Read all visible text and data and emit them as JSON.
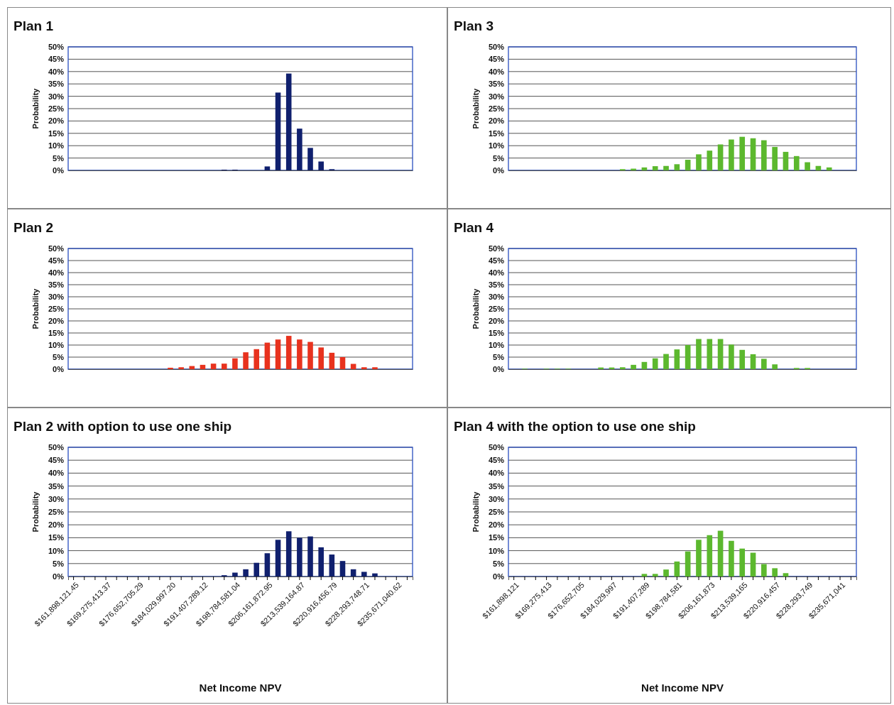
{
  "chart_data": [
    {
      "type": "bar",
      "title": "Plan  1",
      "ylabel": "Probability",
      "tick_labels": "y",
      "grid": "y",
      "categories": [
        null,
        null,
        null,
        null,
        null,
        null,
        null,
        null,
        null,
        null,
        null,
        null,
        null,
        null,
        null,
        null,
        null,
        null,
        null,
        null,
        null,
        null,
        null,
        null,
        null,
        null,
        null,
        null,
        null,
        null,
        null,
        null
      ],
      "values": [
        null,
        null,
        null,
        null,
        null,
        null,
        null,
        null,
        null,
        null,
        null,
        null,
        null,
        null,
        0.3,
        0.3,
        null,
        null,
        1.6,
        31.5,
        39.2,
        16.9,
        9.1,
        3.6,
        0.5,
        null,
        null,
        null,
        null,
        null,
        null,
        null
      ],
      "color": "#10206e",
      "ylim": [
        0,
        50
      ],
      "yticks": [
        {
          "value": 0,
          "label": "0%"
        },
        {
          "value": 5,
          "label": "5%"
        },
        {
          "value": 10,
          "label": "10%"
        },
        {
          "value": 15,
          "label": "15%"
        },
        {
          "value": 20,
          "label": "20%"
        },
        {
          "value": 25,
          "label": "25%"
        },
        {
          "value": 30,
          "label": "30%"
        },
        {
          "value": 35,
          "label": "35%"
        },
        {
          "value": 40,
          "label": "40%"
        },
        {
          "value": 45,
          "label": "45%"
        },
        {
          "value": 50,
          "label": "50%"
        }
      ]
    },
    {
      "type": "bar",
      "title": "Plan 3",
      "ylabel": "Probability",
      "tick_labels": "y",
      "grid": "y",
      "categories": [
        null,
        null,
        null,
        null,
        null,
        null,
        null,
        null,
        null,
        null,
        null,
        null,
        null,
        null,
        null,
        null,
        null,
        null,
        null,
        null,
        null,
        null,
        null,
        null,
        null,
        null,
        null,
        null,
        null,
        null,
        null,
        null
      ],
      "values": [
        null,
        null,
        null,
        null,
        null,
        null,
        null,
        null,
        null,
        null,
        0.5,
        0.7,
        1.2,
        1.7,
        1.8,
        2.5,
        4.3,
        6.5,
        8,
        10.5,
        12.5,
        13.6,
        13,
        12.2,
        9.5,
        7.5,
        5.8,
        3.3,
        1.8,
        1.2,
        null,
        null
      ],
      "color": "#5cb82e",
      "ylim": [
        0,
        50
      ],
      "yticks": [
        {
          "value": 0,
          "label": "0%"
        },
        {
          "value": 5,
          "label": "5%"
        },
        {
          "value": 10,
          "label": "10%"
        },
        {
          "value": 15,
          "label": "15%"
        },
        {
          "value": 20,
          "label": "20%"
        },
        {
          "value": 25,
          "label": "25%"
        },
        {
          "value": 30,
          "label": "30%"
        },
        {
          "value": 35,
          "label": "35%"
        },
        {
          "value": 40,
          "label": "40%"
        },
        {
          "value": 45,
          "label": "45%"
        },
        {
          "value": 50,
          "label": "50%"
        }
      ]
    },
    {
      "type": "bar",
      "title": "Plan 2",
      "ylabel": "Probability",
      "tick_labels": "y",
      "grid": "y",
      "categories": [
        null,
        null,
        null,
        null,
        null,
        null,
        null,
        null,
        null,
        null,
        null,
        null,
        null,
        null,
        null,
        null,
        null,
        null,
        null,
        null,
        null,
        null,
        null,
        null,
        null,
        null,
        null,
        null,
        null,
        null,
        null,
        null
      ],
      "values": [
        null,
        null,
        null,
        null,
        null,
        null,
        null,
        null,
        null,
        0.6,
        0.8,
        1.3,
        1.8,
        2.3,
        2.3,
        4.5,
        7,
        8.3,
        11,
        12.3,
        13.8,
        12.3,
        11.3,
        9,
        6.8,
        5,
        2.2,
        0.8,
        0.8,
        null,
        null,
        null
      ],
      "color": "#e8321e",
      "ylim": [
        0,
        50
      ],
      "yticks": [
        {
          "value": 0,
          "label": "0%"
        },
        {
          "value": 5,
          "label": "5%"
        },
        {
          "value": 10,
          "label": "10%"
        },
        {
          "value": 15,
          "label": "15%"
        },
        {
          "value": 20,
          "label": "20%"
        },
        {
          "value": 25,
          "label": "25%"
        },
        {
          "value": 30,
          "label": "30%"
        },
        {
          "value": 35,
          "label": "35%"
        },
        {
          "value": 40,
          "label": "40%"
        },
        {
          "value": 45,
          "label": "45%"
        },
        {
          "value": 50,
          "label": "50%"
        }
      ]
    },
    {
      "type": "bar",
      "title": "Plan 4",
      "ylabel": "Probability",
      "tick_labels": "y",
      "grid": "y",
      "categories": [
        null,
        null,
        null,
        null,
        null,
        null,
        null,
        null,
        null,
        null,
        null,
        null,
        null,
        null,
        null,
        null,
        null,
        null,
        null,
        null,
        null,
        null,
        null,
        null,
        null,
        null,
        null,
        null,
        null,
        null,
        null,
        null
      ],
      "values": [
        null,
        0.2,
        null,
        0.2,
        0.2,
        0.2,
        null,
        null,
        0.7,
        0.7,
        0.8,
        1.8,
        3,
        4.5,
        6.3,
        8.2,
        10,
        12.5,
        12.5,
        12.5,
        10.2,
        8,
        6.2,
        4.3,
        2,
        null,
        0.5,
        0.5,
        null,
        null,
        null,
        null
      ],
      "color": "#5cb82e",
      "ylim": [
        0,
        50
      ],
      "yticks": [
        {
          "value": 0,
          "label": "0%"
        },
        {
          "value": 5,
          "label": "5%"
        },
        {
          "value": 10,
          "label": "10%"
        },
        {
          "value": 15,
          "label": "15%"
        },
        {
          "value": 20,
          "label": "20%"
        },
        {
          "value": 25,
          "label": "25%"
        },
        {
          "value": 30,
          "label": "30%"
        },
        {
          "value": 35,
          "label": "35%"
        },
        {
          "value": 40,
          "label": "40%"
        },
        {
          "value": 45,
          "label": "45%"
        },
        {
          "value": 50,
          "label": "50%"
        }
      ]
    },
    {
      "type": "bar",
      "title": "Plan 2 with option to use one ship",
      "ylabel": "Probability",
      "xlabel": "Net Income NPV",
      "grid": "y",
      "categories": [
        "$161,898,121.45",
        null,
        null,
        "$169,275,413.37",
        null,
        null,
        "$176,652,705.29",
        null,
        null,
        "$184,029,997.20",
        null,
        null,
        "$191,407,289.12",
        null,
        null,
        "$198,784,581.04",
        null,
        null,
        "$206,161,872.95",
        null,
        null,
        "$213,539,164.87",
        null,
        null,
        "$220,916,456.79",
        null,
        null,
        "$228,293,748.71",
        null,
        null,
        "$235,671,040.62",
        null
      ],
      "values": [
        null,
        null,
        null,
        null,
        null,
        null,
        null,
        null,
        null,
        null,
        null,
        null,
        null,
        null,
        0.5,
        1.5,
        2.8,
        5.3,
        9,
        14.2,
        17.5,
        15,
        15.5,
        11.3,
        8.5,
        6,
        2.8,
        1.8,
        1.2,
        null,
        null,
        null
      ],
      "color": "#10206e",
      "ylim": [
        0,
        50
      ],
      "yticks": [
        {
          "value": 0,
          "label": "0%"
        },
        {
          "value": 5,
          "label": "5%"
        },
        {
          "value": 10,
          "label": "10%"
        },
        {
          "value": 15,
          "label": "15%"
        },
        {
          "value": 20,
          "label": "20%"
        },
        {
          "value": 25,
          "label": "25%"
        },
        {
          "value": 30,
          "label": "30%"
        },
        {
          "value": 35,
          "label": "35%"
        },
        {
          "value": 40,
          "label": "40%"
        },
        {
          "value": 45,
          "label": "45%"
        },
        {
          "value": 50,
          "label": "50%"
        }
      ]
    },
    {
      "type": "bar",
      "title": "Plan 4 with the option to use one ship",
      "ylabel": "Probability",
      "xlabel": "Net Income NPV",
      "grid": "y",
      "categories": [
        "$161,898,121",
        null,
        null,
        "$169,275,413",
        null,
        null,
        "$176,652,705",
        null,
        null,
        "$184,029,997",
        null,
        null,
        "$191,407,289",
        null,
        null,
        "$198,784,581",
        null,
        null,
        "$206,161,873",
        null,
        null,
        "$213,539,165",
        null,
        null,
        "$220,916,457",
        null,
        null,
        "$228,293,749",
        null,
        null,
        "$235,671,041",
        null
      ],
      "values": [
        null,
        null,
        null,
        null,
        null,
        null,
        null,
        null,
        null,
        null,
        null,
        null,
        1,
        1,
        2.7,
        5.8,
        9.7,
        14.2,
        16,
        17.7,
        13.8,
        10.8,
        9.2,
        4.8,
        3.2,
        1.3,
        null,
        null,
        null,
        null,
        null,
        null
      ],
      "color": "#5cb82e",
      "ylim": [
        0,
        50
      ],
      "yticks": [
        {
          "value": 0,
          "label": "0%"
        },
        {
          "value": 5,
          "label": "5%"
        },
        {
          "value": 10,
          "label": "10%"
        },
        {
          "value": 15,
          "label": "15%"
        },
        {
          "value": 20,
          "label": "20%"
        },
        {
          "value": 25,
          "label": "25%"
        },
        {
          "value": 30,
          "label": "30%"
        },
        {
          "value": 35,
          "label": "35%"
        },
        {
          "value": 40,
          "label": "40%"
        },
        {
          "value": 45,
          "label": "45%"
        },
        {
          "value": 50,
          "label": "50%"
        }
      ]
    }
  ]
}
